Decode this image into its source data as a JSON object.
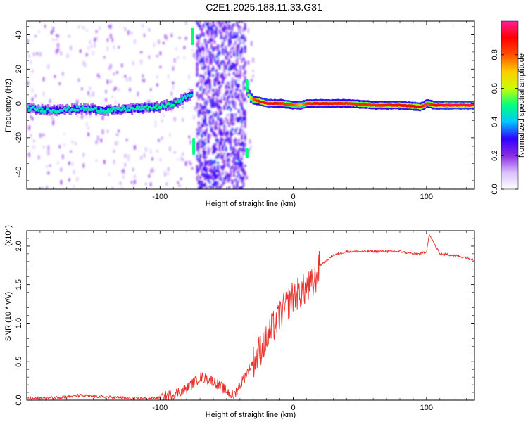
{
  "figure": {
    "title": "C2E1.2025.188.11.33.G31"
  },
  "chart_data": [
    {
      "type": "heatmap",
      "xlabel": "Height of straight line (km)",
      "ylabel": "Frequency (Hz)",
      "xlim": [
        -200,
        136
      ],
      "ylim": [
        -50,
        48
      ],
      "xticks": [
        -100,
        0,
        100
      ],
      "xtick_labels": [
        "-100",
        "0",
        "100"
      ],
      "yticks": [
        -40,
        -20,
        0,
        20,
        40
      ],
      "ytick_labels": [
        "-40",
        "-20",
        "0",
        "20",
        "40"
      ],
      "colorbar": {
        "label": "Normalized spectral amplitude",
        "range": [
          0,
          1
        ],
        "ticks": [
          0.0,
          0.2,
          0.4,
          0.6,
          0.8
        ],
        "tick_labels": [
          "0.0",
          "0.2",
          "0.4",
          "0.6",
          "0.8"
        ],
        "colors": [
          "#ffffff",
          "#d9bfff",
          "#8a2be2",
          "#3000ff",
          "#00c8ff",
          "#00ff80",
          "#c8ff00",
          "#ffcc00",
          "#ff5000",
          "#ff0000",
          "#ff1e96"
        ]
      },
      "ridge": {
        "x": [
          -200,
          -180,
          -160,
          -140,
          -120,
          -100,
          -90,
          -85,
          -80,
          -76,
          -74,
          -38,
          -36,
          -34,
          -32,
          -30,
          -25,
          -20,
          -10,
          0,
          5,
          10,
          20,
          40,
          60,
          80,
          95,
          100,
          105,
          115,
          136
        ],
        "y": [
          -3,
          -4,
          -3,
          -4,
          -3,
          -2,
          0,
          2,
          4,
          6,
          null,
          null,
          8,
          5,
          3,
          2,
          1,
          0,
          0,
          -1,
          -1,
          0,
          0,
          0,
          -1,
          -1,
          -2,
          0,
          -1,
          -1,
          -1
        ],
        "amplitude": [
          0.45,
          0.45,
          0.45,
          0.45,
          0.45,
          0.5,
          0.5,
          0.45,
          0.45,
          0.4,
          null,
          null,
          0.5,
          0.6,
          0.7,
          0.8,
          0.9,
          0.95,
          0.85,
          0.8,
          0.7,
          0.85,
          0.9,
          0.85,
          0.85,
          0.9,
          0.9,
          0.8,
          0.9,
          0.95,
          0.95
        ]
      },
      "broadband_region": {
        "x": [
          -74,
          -36
        ],
        "ylim": [
          -50,
          48
        ],
        "amplitude": 0.3
      }
    },
    {
      "type": "line",
      "xlabel": "Height of straight line (km)",
      "ylabel": "SNR (10 * v/v)",
      "scale_label": "(x10⁴)",
      "xlim": [
        -200,
        136
      ],
      "ylim": [
        0,
        2.2
      ],
      "xticks": [
        -100,
        0,
        100
      ],
      "xtick_labels": [
        "-100",
        "0",
        "100"
      ],
      "yticks": [
        0.0,
        0.5,
        1.0,
        1.5,
        2.0
      ],
      "ytick_labels": [
        "0.0",
        "0.5",
        "1.0",
        "1.5",
        "2.0"
      ],
      "line_color": "#e8302a",
      "x": [
        -200,
        -180,
        -160,
        -140,
        -120,
        -100,
        -90,
        -80,
        -70,
        -60,
        -50,
        -45,
        -40,
        -30,
        -20,
        -10,
        0,
        5,
        10,
        15,
        20,
        30,
        40,
        60,
        80,
        90,
        95,
        100,
        102,
        110,
        120,
        130,
        136
      ],
      "y": [
        0.02,
        0.03,
        0.06,
        0.04,
        0.02,
        0.03,
        0.08,
        0.15,
        0.3,
        0.25,
        0.12,
        0.05,
        0.2,
        0.5,
        0.8,
        1.1,
        1.35,
        1.4,
        1.45,
        1.5,
        1.75,
        1.88,
        1.93,
        1.93,
        1.93,
        1.9,
        1.9,
        1.93,
        2.15,
        1.9,
        1.88,
        1.85,
        1.82
      ]
    }
  ]
}
